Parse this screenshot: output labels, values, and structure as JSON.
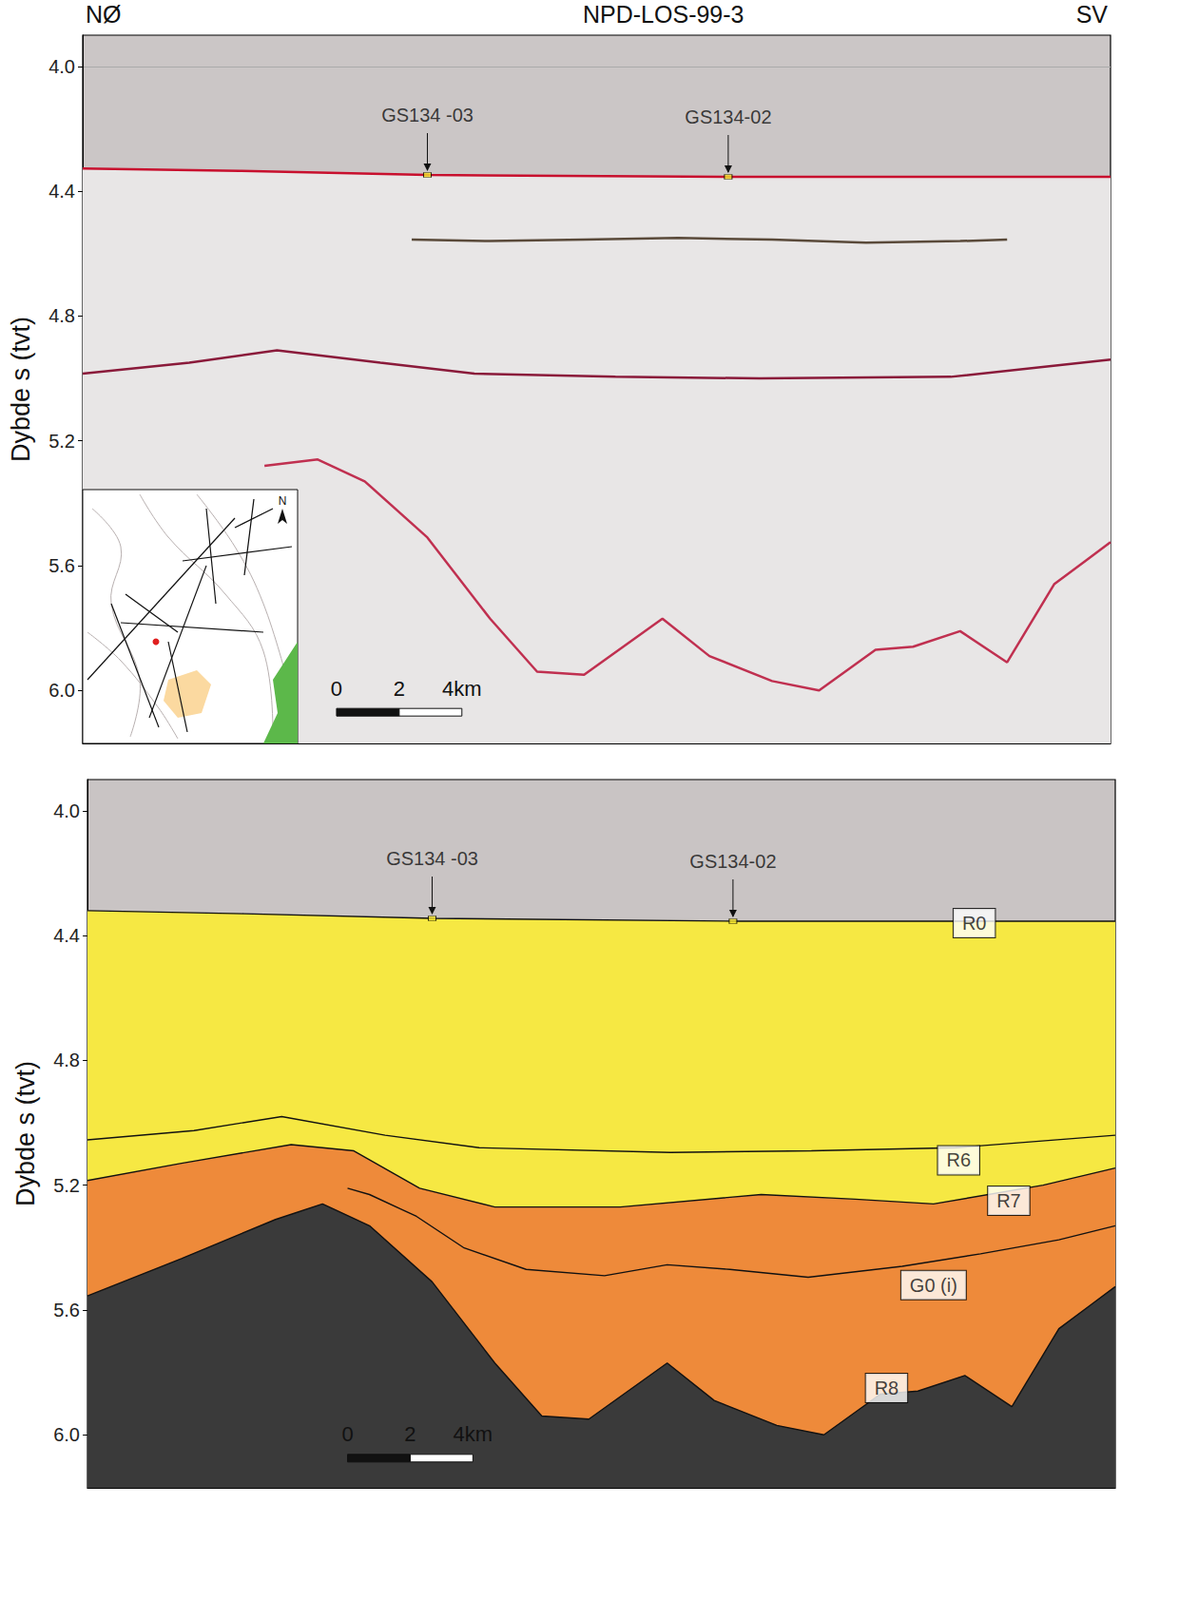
{
  "chart_data": [
    {
      "type": "line",
      "title": "NPD-LOS-99-3",
      "direction_labels": [
        "NØ",
        "SV"
      ],
      "ylabel": "Dybde s (tvt)",
      "xlim": [
        0,
        32.8
      ],
      "ylim": [
        3.9,
        6.17
      ],
      "yticks": [
        {
          "value": 4,
          "label": "4.0"
        },
        4.4,
        4.8,
        5.2,
        5.6,
        {
          "value": 6,
          "label": "6.0"
        }
      ],
      "grid": true,
      "tick_labels": "y",
      "series": [
        {
          "type": "area",
          "color": "#e8e6e6",
          "line_color": "#c8102e",
          "x": [
            0,
            5,
            11,
            20.6,
            32.8
          ],
          "values": [
            4.327,
            4.335,
            4.348,
            4.354,
            4.354
          ]
        },
        {
          "type": "line",
          "color": "#5a4a3a",
          "x": [
            10.5,
            13,
            16,
            19,
            22,
            25,
            28,
            29.5
          ],
          "values": [
            4.555,
            4.56,
            4.555,
            4.55,
            4.555,
            4.565,
            4.56,
            4.555
          ]
        },
        {
          "type": "line",
          "color": "#8a1a3a",
          "x": [
            0,
            3.4,
            6.2,
            9.5,
            12.5,
            17,
            21.6,
            27.7,
            32.8
          ],
          "values": [
            4.985,
            4.95,
            4.91,
            4.95,
            4.985,
            4.995,
            5.0,
            4.995,
            4.94
          ]
        },
        {
          "type": "line",
          "color": "#c03050",
          "x": [
            5.8,
            7.5,
            9,
            11,
            13,
            14.5,
            16,
            18.5,
            20,
            22,
            23.5,
            25.3,
            26.5,
            28,
            29.5,
            31,
            32,
            32.8
          ],
          "values": [
            5.28,
            5.26,
            5.33,
            5.51,
            5.77,
            5.94,
            5.95,
            5.77,
            5.89,
            5.97,
            6.0,
            5.87,
            5.86,
            5.81,
            5.91,
            5.66,
            5.585,
            5.525
          ]
        }
      ],
      "annotations": [
        {
          "text": "GS134 -03",
          "x": 11.0,
          "y": 4.348
        },
        {
          "text": "GS134-02",
          "x": 20.6,
          "y": 4.354
        }
      ],
      "scale_bar": {
        "labels": [
          "0",
          "2",
          "4km"
        ],
        "km": [
          0,
          2,
          4
        ],
        "at": [
          8.1,
          6.07
        ]
      },
      "inset": {
        "north": "N"
      }
    },
    {
      "type": "line",
      "ylabel": "Dybde s (tvt)",
      "xlim": [
        0,
        32.8
      ],
      "ylim": [
        3.9,
        6.17
      ],
      "yticks": [
        {
          "value": 4,
          "label": "4.0"
        },
        4.4,
        4.8,
        5.2,
        5.6,
        {
          "value": 6,
          "label": "6.0"
        }
      ],
      "grid": false,
      "tick_labels": "y",
      "series": [
        {
          "name": "R0",
          "type": "area",
          "color": "#f6e843",
          "label_at": [
            28.3,
            4.36
          ],
          "x": [
            0,
            5,
            11,
            20.8,
            32.8
          ],
          "values": [
            4.32,
            4.33,
            4.345,
            4.354,
            4.354
          ]
        },
        {
          "name": "R7",
          "type": "area",
          "color": "#ee8a3a",
          "label_at": [
            29.4,
            5.25
          ],
          "x": [
            0,
            3.0,
            6.5,
            8.5,
            10.6,
            13,
            17,
            21.5,
            24.5,
            27,
            30.5,
            32.8
          ],
          "values": [
            5.185,
            5.13,
            5.07,
            5.09,
            5.21,
            5.27,
            5.27,
            5.23,
            5.245,
            5.26,
            5.2,
            5.145
          ]
        },
        {
          "name": "R8",
          "type": "area",
          "color": "#3a3a3a",
          "label_at": [
            25.5,
            5.85
          ],
          "x": [
            0,
            3.0,
            6.0,
            7.5,
            9.0,
            11,
            13,
            14.5,
            16,
            18.5,
            20,
            22,
            23.5,
            25.3,
            26.5,
            28,
            29.5,
            31,
            32,
            32.8
          ],
          "values": [
            5.555,
            5.435,
            5.31,
            5.26,
            5.33,
            5.51,
            5.77,
            5.94,
            5.95,
            5.77,
            5.89,
            5.97,
            6.0,
            5.87,
            5.86,
            5.81,
            5.91,
            5.66,
            5.585,
            5.525
          ]
        },
        {
          "name": "R6",
          "type": "line",
          "color": "#111111",
          "label_at": [
            27.8,
            5.12
          ],
          "x": [
            0,
            3.4,
            6.2,
            9.5,
            12.5,
            18.6,
            23.1,
            27.7,
            32.8
          ],
          "values": [
            5.055,
            5.025,
            4.98,
            5.04,
            5.08,
            5.095,
            5.09,
            5.08,
            5.04
          ]
        },
        {
          "name": "G0 (i)",
          "type": "line",
          "color": "#111111",
          "label_at": [
            27.0,
            5.52
          ],
          "x": [
            8.3,
            9.0,
            10.5,
            12,
            14,
            16.5,
            18.5,
            20.5,
            23,
            26,
            28.5,
            31,
            32.8
          ],
          "values": [
            5.21,
            5.23,
            5.3,
            5.4,
            5.47,
            5.49,
            5.455,
            5.47,
            5.495,
            5.46,
            5.42,
            5.375,
            5.33
          ]
        }
      ],
      "annotations": [
        {
          "text": "GS134 -03",
          "x": 11.0,
          "y": 4.345
        },
        {
          "text": "GS134-02",
          "x": 20.6,
          "y": 4.354
        }
      ],
      "scale_bar": {
        "labels": [
          "0",
          "2",
          "4km"
        ],
        "km": [
          0,
          2,
          4
        ],
        "at": [
          8.3,
          6.075
        ]
      }
    }
  ]
}
